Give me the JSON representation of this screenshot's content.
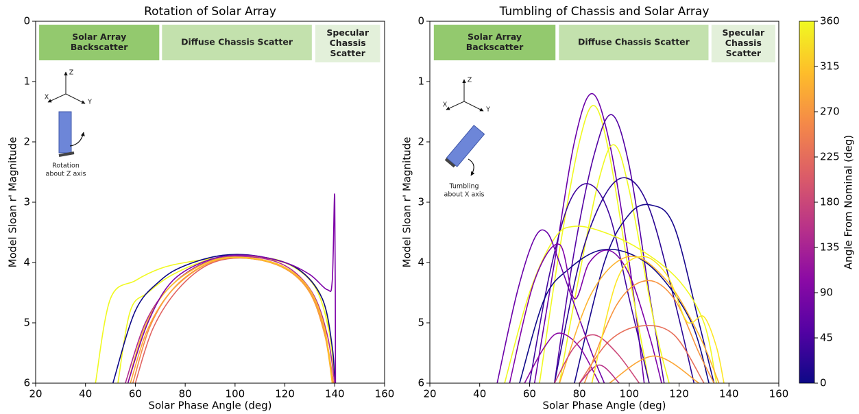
{
  "chart_data": [
    {
      "type": "line",
      "title": "Rotation of Solar Array",
      "xlabel": "Solar Phase Angle (deg)",
      "ylabel": "Model Sloan r' Magnitude",
      "xlim": [
        20,
        160
      ],
      "xticks": [
        20,
        40,
        60,
        80,
        100,
        120,
        140,
        160
      ],
      "ylim": [
        6,
        0
      ],
      "yticks": [
        0,
        1,
        2,
        3,
        4,
        5,
        6
      ],
      "regions": [
        {
          "label": [
            "Solar Array",
            "Backscatter"
          ],
          "x": [
            21.4,
            69.6
          ],
          "color": "#93c96e"
        },
        {
          "label": [
            "Diffuse Chassis Scatter"
          ],
          "x": [
            70.7,
            130.8
          ],
          "color": "#c3e1ad"
        },
        {
          "label": [
            "Specular",
            "Chassis",
            "Scatter"
          ],
          "x": [
            132.2,
            158.2
          ],
          "color": "#e3f0da"
        }
      ],
      "icon": {
        "axes": [
          "X",
          "Y",
          "Z"
        ],
        "caption": [
          "Rotation",
          "about Z axis"
        ]
      },
      "series": [
        {
          "color": "#f0f921",
          "x": [
            44,
            50,
            60,
            70,
            80,
            95,
            110,
            125,
            135,
            139,
            140
          ],
          "values": [
            6,
            4.6,
            4.3,
            4.1,
            4.0,
            3.92,
            3.92,
            4.1,
            4.6,
            5.5,
            6
          ]
        },
        {
          "color": "#f0f921",
          "x": [
            53,
            58,
            65,
            75,
            90,
            105,
            120,
            132,
            138,
            140
          ],
          "values": [
            6,
            4.8,
            4.5,
            4.2,
            3.95,
            3.9,
            4.0,
            4.4,
            5.2,
            6
          ]
        },
        {
          "color": "#0d0887",
          "x": [
            51,
            60,
            70,
            80,
            95,
            110,
            125,
            135,
            139,
            140
          ],
          "values": [
            6,
            4.8,
            4.3,
            4.05,
            3.88,
            3.9,
            4.1,
            4.6,
            5.4,
            6
          ]
        },
        {
          "color": "#b12a90",
          "x": [
            56,
            64,
            74,
            88,
            104,
            120,
            131,
            137,
            140
          ],
          "values": [
            6,
            5.0,
            4.4,
            4.0,
            3.9,
            4.05,
            4.5,
            5.2,
            6
          ]
        },
        {
          "color": "#e16462",
          "x": [
            60,
            67,
            77,
            90,
            105,
            120,
            130,
            136,
            139.5
          ],
          "values": [
            6,
            5.1,
            4.45,
            4.02,
            3.93,
            4.1,
            4.5,
            5.2,
            6
          ]
        },
        {
          "color": "#f48849",
          "x": [
            59,
            66,
            76,
            90,
            105,
            120,
            130,
            136,
            139.5
          ],
          "values": [
            6,
            5.05,
            4.4,
            4.0,
            3.92,
            4.08,
            4.48,
            5.15,
            6
          ]
        },
        {
          "color": "#fca636",
          "x": [
            58,
            65,
            75,
            90,
            105,
            120,
            130,
            136,
            139
          ],
          "values": [
            6,
            5.1,
            4.45,
            4.0,
            3.93,
            4.1,
            4.5,
            5.2,
            6
          ]
        },
        {
          "color": "#fdc527",
          "x": [
            57,
            64,
            74,
            90,
            105,
            120,
            130,
            136,
            139
          ],
          "values": [
            6,
            5.05,
            4.4,
            3.98,
            3.92,
            4.08,
            4.45,
            5.1,
            6
          ]
        },
        {
          "color": "#7e03a8",
          "x": [
            57,
            65,
            75,
            90,
            105,
            120,
            130,
            137,
            139,
            140,
            140.3
          ],
          "values": [
            6,
            5.0,
            4.3,
            3.95,
            3.88,
            4.0,
            4.2,
            4.45,
            4.3,
            2.9,
            6
          ]
        }
      ]
    },
    {
      "type": "line",
      "title": "Tumbling of Chassis and Solar Array",
      "xlabel": "Solar Phase Angle (deg)",
      "ylabel": "Model Sloan r' Magnitude",
      "xlim": [
        20,
        160
      ],
      "xticks": [
        20,
        40,
        60,
        80,
        100,
        120,
        140,
        160
      ],
      "ylim": [
        6,
        0
      ],
      "yticks": [
        0,
        1,
        2,
        3,
        4,
        5,
        6
      ],
      "regions": [
        {
          "label": [
            "Solar Array",
            "Backscatter"
          ],
          "x": [
            21.6,
            70.4
          ],
          "color": "#93c96e"
        },
        {
          "label": [
            "Diffuse Chassis Scatter"
          ],
          "x": [
            71.8,
            131.8
          ],
          "color": "#c3e1ad"
        },
        {
          "label": [
            "Specular",
            "Chassis",
            "Scatter"
          ],
          "x": [
            133,
            158.6
          ],
          "color": "#e3f0da"
        }
      ],
      "icon": {
        "axes": [
          "X",
          "Y",
          "Z"
        ],
        "caption": [
          "Tumbling",
          "about X axis"
        ]
      },
      "series": [
        {
          "color": "#6a00a8",
          "x": [
            62,
            70,
            78,
            85,
            92,
            100,
            106
          ],
          "values": [
            6,
            4.0,
            2.0,
            1.2,
            2.0,
            4.0,
            6
          ]
        },
        {
          "color": "#f0f921",
          "x": [
            64,
            72,
            80,
            86,
            92,
            100,
            108
          ],
          "values": [
            6,
            3.8,
            2.0,
            1.4,
            2.2,
            4.2,
            6
          ]
        },
        {
          "color": "#5302a3",
          "x": [
            70,
            78,
            86,
            93,
            100,
            108,
            114
          ],
          "values": [
            6,
            3.8,
            2.2,
            1.55,
            2.4,
            4.5,
            6
          ]
        },
        {
          "color": "#f0f921",
          "x": [
            72,
            80,
            88,
            94,
            100,
            110,
            116
          ],
          "values": [
            6,
            4.2,
            2.6,
            2.05,
            2.8,
            5.0,
            6
          ]
        },
        {
          "color": "#3e049c",
          "x": [
            60,
            68,
            76,
            84,
            92,
            100,
            108
          ],
          "values": [
            6,
            4.2,
            3.0,
            2.7,
            3.2,
            4.6,
            6
          ]
        },
        {
          "color": "#2a0593",
          "x": [
            70,
            80,
            90,
            99,
            108,
            118,
            126
          ],
          "values": [
            6,
            4.0,
            2.9,
            2.6,
            3.1,
            4.6,
            6
          ]
        },
        {
          "color": "#17068c",
          "x": [
            78,
            90,
            100,
            109,
            118,
            128,
            134
          ],
          "values": [
            6,
            4.0,
            3.2,
            3.05,
            3.4,
            5.0,
            6
          ]
        },
        {
          "color": "#f0f921",
          "x": [
            50,
            60,
            70,
            78,
            90,
            105,
            120,
            130,
            135
          ],
          "values": [
            6,
            4.5,
            3.6,
            3.4,
            3.5,
            3.8,
            4.3,
            5.0,
            6
          ]
        },
        {
          "color": "#0d0887",
          "x": [
            56,
            66,
            76,
            88,
            100,
            112,
            125,
            132
          ],
          "values": [
            6,
            4.6,
            4.1,
            3.8,
            3.85,
            4.2,
            5.0,
            6
          ]
        },
        {
          "color": "#6a00a8",
          "x": [
            47,
            55,
            62,
            67,
            72,
            78,
            85,
            90
          ],
          "values": [
            6,
            4.5,
            3.6,
            3.5,
            4.0,
            4.7,
            5.5,
            6
          ]
        },
        {
          "color": "#7e03a8",
          "x": [
            52,
            62,
            72,
            78,
            84,
            92,
            100,
            108,
            113
          ],
          "values": [
            6,
            4.3,
            3.7,
            4.6,
            4.0,
            3.8,
            4.2,
            5.2,
            6
          ]
        },
        {
          "color": "#8b0aa5",
          "x": [
            58,
            66,
            72,
            80,
            88
          ],
          "values": [
            6,
            5.4,
            5.17,
            5.4,
            6
          ]
        },
        {
          "color": "#e76f5a",
          "x": [
            80,
            92,
            105,
            118,
            130
          ],
          "values": [
            6,
            5.3,
            5.05,
            5.2,
            6
          ]
        },
        {
          "color": "#f89540",
          "x": [
            82,
            95,
            107,
            118,
            128,
            134
          ],
          "values": [
            6,
            4.7,
            4.3,
            4.6,
            5.5,
            6
          ]
        },
        {
          "color": "#fdb32f",
          "x": [
            72,
            85,
            100,
            115,
            128,
            136
          ],
          "values": [
            6,
            4.5,
            3.9,
            4.3,
            5.2,
            6
          ]
        },
        {
          "color": "#cc4778",
          "x": [
            70,
            78,
            86,
            95,
            104
          ],
          "values": [
            6,
            5.4,
            5.2,
            5.5,
            6
          ]
        },
        {
          "color": "#fca636",
          "x": [
            92,
            110,
            128
          ],
          "values": [
            6,
            5.55,
            6
          ]
        },
        {
          "color": "#b83289",
          "x": [
            80,
            88,
            96
          ],
          "values": [
            6,
            5.7,
            6
          ]
        },
        {
          "color": "#fde725",
          "x": [
            85,
            95,
            105,
            115,
            122,
            125,
            130,
            135,
            138
          ],
          "values": [
            6,
            4.3,
            3.9,
            4.2,
            4.9,
            5.0,
            4.9,
            5.4,
            6
          ]
        }
      ],
      "colorbar": {
        "label": "Angle From Nominal (deg)",
        "lim": [
          0,
          360
        ],
        "ticks": [
          0,
          45,
          90,
          135,
          180,
          225,
          270,
          315,
          360
        ],
        "colors": [
          "#0d0887",
          "#5302a3",
          "#8b0aa5",
          "#b83289",
          "#db5c68",
          "#f48849",
          "#febd2a",
          "#f0f921"
        ]
      }
    }
  ]
}
